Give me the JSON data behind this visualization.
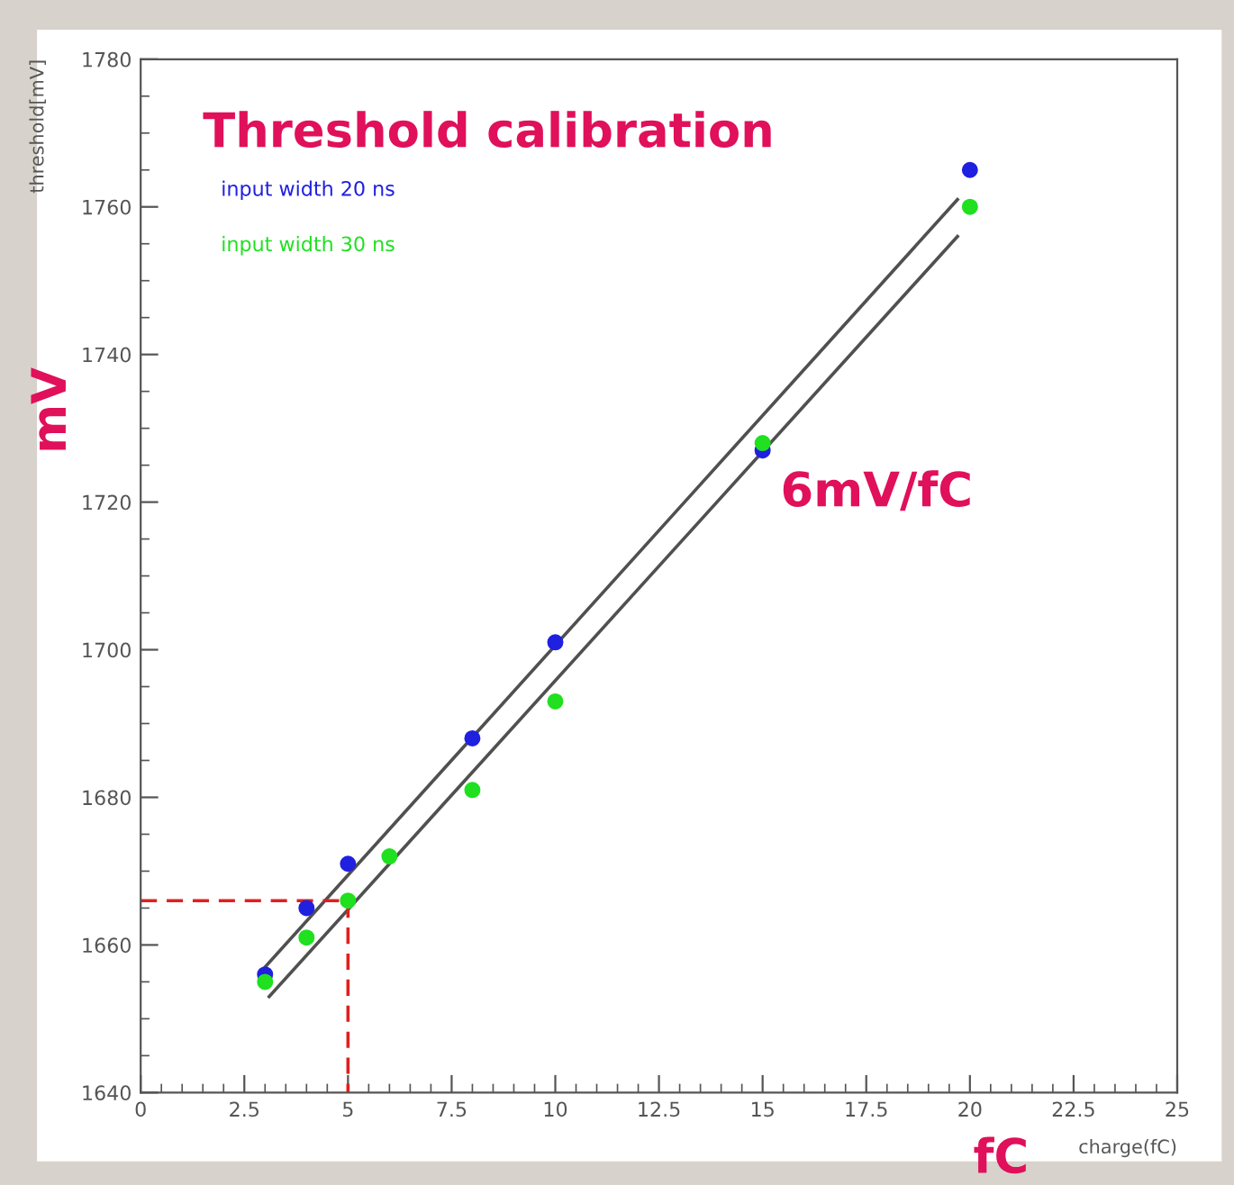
{
  "chart_data": {
    "type": "scatter",
    "title": "Threshold calibration",
    "xlabel": "charge(fC)",
    "ylabel": "threshold[mV]",
    "annotations": [
      "6mV/fC",
      "mV",
      "fC"
    ],
    "xlim": [
      0,
      25
    ],
    "ylim": [
      1640,
      1780
    ],
    "xticks": [
      0,
      2.5,
      5,
      7.5,
      10,
      12.5,
      15,
      17.5,
      20,
      22.5,
      25
    ],
    "yticks": [
      1640,
      1660,
      1680,
      1700,
      1720,
      1740,
      1760,
      1780
    ],
    "legend": "top left",
    "series": [
      {
        "name": "input width 20 ns",
        "color": "#2020e0",
        "marker": "circle",
        "x": [
          3,
          4,
          5,
          8,
          10,
          15,
          20
        ],
        "values": [
          1656,
          1665,
          1671,
          1688,
          1701,
          1727,
          1765
        ]
      },
      {
        "name": "input width 30 ns",
        "color": "#20e020",
        "marker": "circle",
        "x": [
          3,
          4,
          5,
          6,
          8,
          10,
          15,
          20
        ],
        "values": [
          1655,
          1661,
          1666,
          1672,
          1681,
          1693,
          1728,
          1760
        ]
      },
      {
        "type": "line",
        "color": "#505050",
        "line_style": "solid",
        "x": [
          3,
          19.7
        ],
        "values": [
          1657,
          1761
        ]
      },
      {
        "type": "line",
        "color": "#505050",
        "line_style": "solid",
        "x": [
          3.1,
          19.7
        ],
        "values": [
          1653,
          1756
        ]
      },
      {
        "type": "line",
        "color": "#e02020",
        "line_style": "dashed",
        "x": [
          0,
          5,
          5
        ],
        "values": [
          1666,
          1666,
          1640
        ]
      }
    ]
  }
}
